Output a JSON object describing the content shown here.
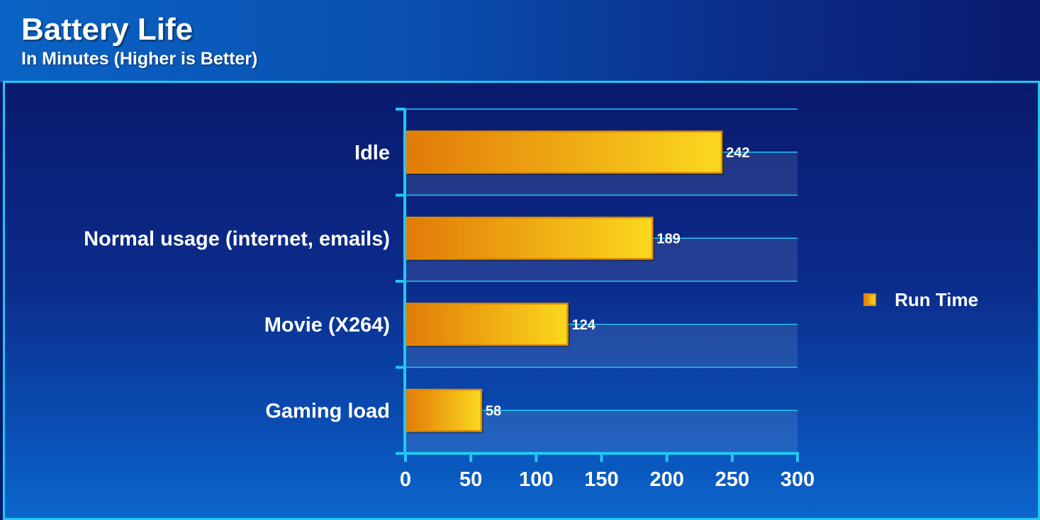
{
  "header": {
    "title": "Battery Life",
    "subtitle": "In Minutes (Higher is Better)"
  },
  "colors": {
    "bar_start": "#e27a08",
    "bar_end": "#fbd81e",
    "bar_border": "#e08a00",
    "axis": "#22c8f2",
    "gridline": "#22c8f2",
    "text": "#ffffff"
  },
  "chart_data": {
    "type": "bar",
    "orientation": "horizontal",
    "title": "Battery Life",
    "subtitle": "In Minutes (Higher is Better)",
    "categories": [
      "Idle",
      "Normal usage (internet, emails)",
      "Movie (X264)",
      "Gaming load"
    ],
    "series": [
      {
        "name": "Run Time",
        "values": [
          242,
          189,
          124,
          58
        ]
      }
    ],
    "data_labels": [
      "242",
      "189",
      "124",
      "58"
    ],
    "xlim": [
      0,
      300
    ],
    "x_ticks": [
      0,
      50,
      100,
      150,
      200,
      250,
      300
    ],
    "x_tick_labels": [
      "0",
      "50",
      "100",
      "150",
      "200",
      "250",
      "300"
    ],
    "xlabel": "",
    "ylabel": "",
    "grid": true,
    "legend": {
      "placement": "right",
      "entries": [
        "Run Time"
      ]
    }
  }
}
